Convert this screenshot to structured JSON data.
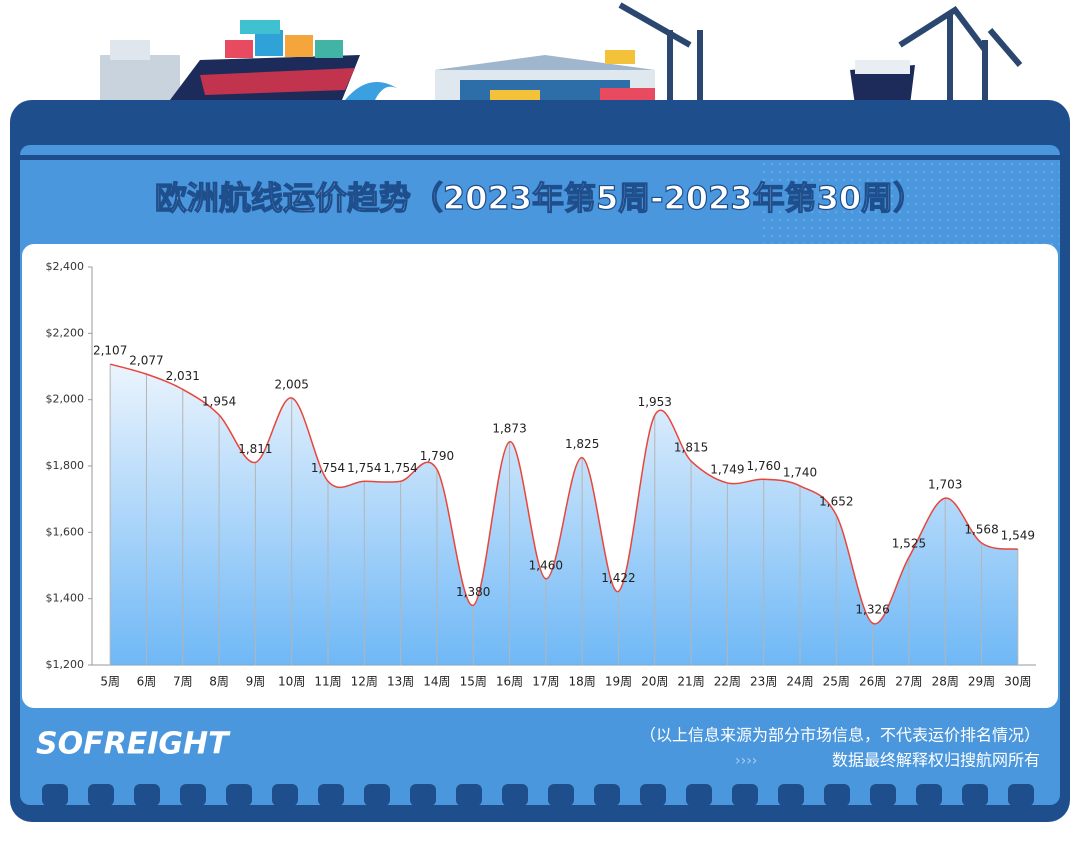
{
  "chart_data": {
    "type": "line",
    "title": "欧洲航线运价趋势（2023年第5周-2023年第30周）",
    "categories": [
      "5周",
      "6周",
      "7周",
      "8周",
      "9周",
      "10周",
      "11周",
      "12周",
      "13周",
      "14周",
      "15周",
      "16周",
      "17周",
      "18周",
      "19周",
      "20周",
      "21周",
      "22周",
      "23周",
      "24周",
      "25周",
      "26周",
      "27周",
      "28周",
      "29周",
      "30周"
    ],
    "values": [
      2107,
      2077,
      2031,
      1954,
      1811,
      2005,
      1754,
      1754,
      1754,
      1790,
      1380,
      1873,
      1460,
      1825,
      1422,
      1953,
      1815,
      1749,
      1760,
      1740,
      1652,
      1326,
      1525,
      1703,
      1568,
      1549
    ],
    "value_labels": [
      "2,107",
      "2,077",
      "2,031",
      "1,954",
      "1,811",
      "2,005",
      "1,754",
      "1,754",
      "1,754",
      "1,790",
      "1,380",
      "1,873",
      "1,460",
      "1,825",
      "1,422",
      "1,953",
      "1,815",
      "1,749",
      "1,760",
      "1,740",
      "1,652",
      "1,326",
      "1,525",
      "1,703",
      "1,568",
      "1,549"
    ],
    "color": "#e8453c",
    "ylim": [
      1200,
      2400
    ],
    "yticks": [
      {
        "value": 1200,
        "label": "$1,200"
      },
      {
        "value": 1400,
        "label": "$1,400"
      },
      {
        "value": 1600,
        "label": "$1,600"
      },
      {
        "value": 1800,
        "label": "$1,800"
      },
      {
        "value": 2000,
        "label": "$2,000"
      },
      {
        "value": 2200,
        "label": "$2,200"
      },
      {
        "value": 2400,
        "label": "$2,400"
      }
    ],
    "smooth": true,
    "area": true,
    "logo": "SOFREIGHT",
    "notes": [
      "（以上信息来源为部分市场信息，不代表运价排名情况）",
      "数据最终解释权归搜航网所有"
    ]
  }
}
